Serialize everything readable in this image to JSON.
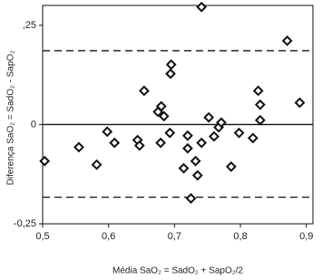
{
  "chart_data": {
    "type": "scatter",
    "x_label": "Média SaO₂ = SadO₂ + SapO₂/2",
    "y_label": "Diferença SaO₂ = SadO₂ - SapO₂",
    "x": [
      0.503,
      0.555,
      0.582,
      0.598,
      0.609,
      0.644,
      0.647,
      0.654,
      0.675,
      0.68,
      0.684,
      0.679,
      0.693,
      0.695,
      0.694,
      0.741,
      0.72,
      0.72,
      0.714,
      0.725,
      0.732,
      0.735,
      0.741,
      0.752,
      0.76,
      0.767,
      0.771,
      0.786,
      0.798,
      0.819,
      0.827,
      0.83,
      0.83,
      0.871,
      0.89
    ],
    "values": [
      -0.092,
      -0.057,
      -0.101,
      -0.018,
      -0.046,
      -0.039,
      -0.053,
      0.085,
      0.032,
      0.046,
      0.021,
      -0.046,
      -0.021,
      0.151,
      0.128,
      0.296,
      -0.028,
      -0.06,
      -0.11,
      -0.186,
      -0.092,
      -0.128,
      -0.046,
      0.018,
      -0.03,
      -0.007,
      0.005,
      -0.106,
      -0.021,
      -0.034,
      0.085,
      0.05,
      0.011,
      0.211,
      0.055
    ],
    "color": "#111111",
    "xlim": [
      0.5,
      0.91
    ],
    "xticks": [
      {
        "value": 0.5,
        "label": "0,5"
      },
      {
        "value": 0.6,
        "label": "0,6"
      },
      {
        "value": 0.7,
        "label": "0,7"
      },
      {
        "value": 0.8,
        "label": "0,8"
      },
      {
        "value": 0.9,
        "label": "0,9"
      }
    ],
    "ylim": [
      -0.25,
      0.3
    ],
    "yticks": [
      {
        "value": -0.25,
        "label": "-0,25"
      },
      0,
      {
        "value": 0.25,
        "label": ",25"
      }
    ],
    "hlines": [
      {
        "value": 0,
        "dashed": false
      },
      {
        "value": 0.186,
        "dashed": true
      },
      {
        "value": -0.183,
        "dashed": true
      }
    ]
  }
}
